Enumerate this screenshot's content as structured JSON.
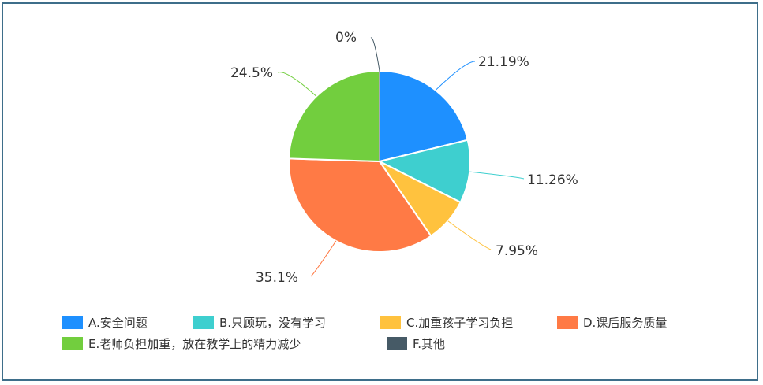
{
  "chart_data": {
    "type": "pie",
    "start_angle_deg": 90,
    "direction": "clockwise",
    "legend_position": "bottom",
    "slices": [
      {
        "label": "A.安全问题",
        "value": 21.19,
        "value_label": "21.19%",
        "color": "#1e90ff"
      },
      {
        "label": "B.只顾玩，没有学习",
        "value": 11.26,
        "value_label": "11.26%",
        "color": "#3ecfcf"
      },
      {
        "label": "C.加重孩子学习负担",
        "value": 7.95,
        "value_label": "7.95%",
        "color": "#ffc23e"
      },
      {
        "label": "D.课后服务质量",
        "value": 35.1,
        "value_label": "35.1%",
        "color": "#ff7a45"
      },
      {
        "label": "E.老师负担加重，放在教学上的精力减少",
        "value": 24.5,
        "value_label": "24.5%",
        "color": "#72ce3e"
      },
      {
        "label": "F.其他",
        "value": 0,
        "value_label": "0%",
        "color": "#465a66"
      }
    ]
  }
}
